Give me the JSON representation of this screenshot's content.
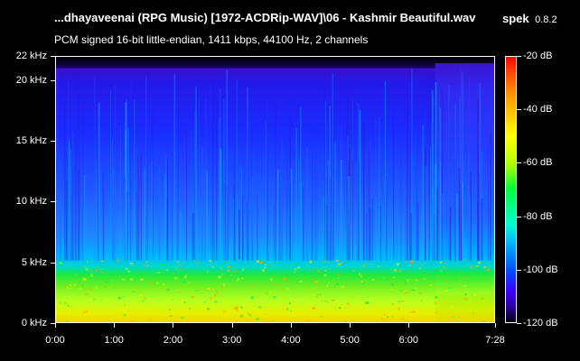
{
  "window": {
    "title": "...dhayaveenai (RPG Music) [1972-ACDRip-WAV]\\06 - Kashmir Beautiful.wav",
    "app_name": "spek",
    "app_version": "0.8.2"
  },
  "stream_info": "PCM signed 16-bit little-endian, 1411 kbps, 44100 Hz, 2 channels",
  "frequency_axis": {
    "unit": "kHz",
    "max_khz": 22,
    "ticks": [
      {
        "value": 22,
        "label": "22 kHz"
      },
      {
        "value": 20,
        "label": "20 kHz"
      },
      {
        "value": 15,
        "label": "15 kHz"
      },
      {
        "value": 10,
        "label": "10 kHz"
      },
      {
        "value": 5,
        "label": "5 kHz"
      },
      {
        "value": 0,
        "label": "0 kHz"
      }
    ]
  },
  "time_axis": {
    "duration_seconds": 448,
    "ticks": [
      {
        "value": 0,
        "label": "0:00"
      },
      {
        "value": 60,
        "label": "1:00"
      },
      {
        "value": 120,
        "label": "2:00"
      },
      {
        "value": 180,
        "label": "3:00"
      },
      {
        "value": 240,
        "label": "4:00"
      },
      {
        "value": 300,
        "label": "5:00"
      },
      {
        "value": 360,
        "label": "6:00"
      },
      {
        "value": 448,
        "label": "7:28"
      }
    ]
  },
  "db_scale": {
    "min": -120,
    "max": -20,
    "ticks": [
      {
        "value": -20,
        "label": "-20 dB"
      },
      {
        "value": -40,
        "label": "-40 dB"
      },
      {
        "value": -60,
        "label": "-60 dB"
      },
      {
        "value": -80,
        "label": "-80 dB"
      },
      {
        "value": -100,
        "label": "-100 dB"
      },
      {
        "value": -120,
        "label": "-120 dB"
      }
    ]
  },
  "spectrogram": {
    "lowpass_cutoff_khz": 21,
    "high_band_section_start_seconds": 387,
    "colors": {
      "top_violet": "#3a10c8",
      "upper_blue": "#1a2cff",
      "mid_blue": "#1e6cff",
      "cyan": "#00c8ff",
      "green": "#1ee83c",
      "yellow_green": "#b4ff1e",
      "yellow": "#e6f000",
      "orange": "#ffa000"
    }
  }
}
